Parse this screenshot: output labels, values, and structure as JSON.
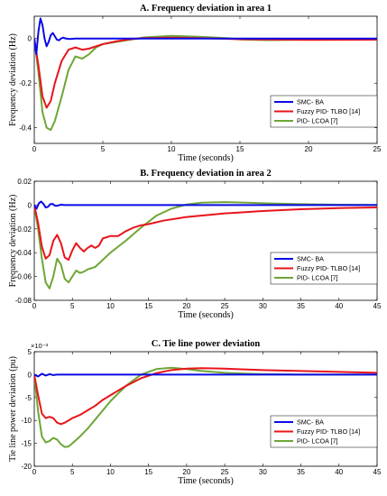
{
  "colors": {
    "smc": "#0a0ae6",
    "fuzzy": "#e8141b",
    "pid": "#6ea636"
  },
  "chart_data": [
    {
      "type": "line",
      "title": "A. Frequency deviation in area 1",
      "xlabel": "Time (seconds)",
      "ylabel": "Frequency deviation (Hz)",
      "xlim": [
        0,
        25
      ],
      "ylim": [
        -0.47,
        0.1
      ],
      "xticks": [
        0,
        5,
        10,
        15,
        20,
        25
      ],
      "yticks": [
        0,
        -0.2,
        -0.4
      ],
      "ytick_labels": [
        "0",
        "-0.2",
        "-0.4"
      ],
      "legend_position": "lower-right",
      "series": [
        {
          "name": "SMC- BA",
          "color_key": "smc",
          "x": [
            0,
            0.15,
            0.3,
            0.45,
            0.6,
            0.75,
            0.9,
            1.05,
            1.2,
            1.35,
            1.5,
            1.65,
            1.8,
            1.95,
            2.1,
            2.3,
            2.6,
            3,
            25
          ],
          "y": [
            0,
            -0.07,
            0.03,
            0.09,
            0.06,
            0.0,
            -0.035,
            -0.015,
            0.015,
            0.025,
            0.01,
            -0.005,
            -0.008,
            0.0,
            0.004,
            0.0,
            -0.002,
            0,
            0
          ]
        },
        {
          "name": "Fuzzy PID- TLBO [14]",
          "color_key": "fuzzy",
          "x": [
            0,
            0.3,
            0.6,
            0.9,
            1.2,
            1.5,
            2,
            2.5,
            3,
            3.5,
            4,
            5,
            6,
            7,
            8,
            10,
            12,
            15,
            20,
            25
          ],
          "y": [
            0,
            -0.12,
            -0.26,
            -0.31,
            -0.28,
            -0.2,
            -0.1,
            -0.05,
            -0.04,
            -0.05,
            -0.045,
            -0.025,
            -0.012,
            -0.003,
            0.002,
            0.004,
            0.002,
            -0.003,
            -0.006,
            -0.005
          ]
        },
        {
          "name": "PID- LCOA [7]",
          "color_key": "pid",
          "x": [
            0,
            0.3,
            0.6,
            0.9,
            1.2,
            1.5,
            2,
            2.5,
            3,
            3.5,
            4,
            4.5,
            5,
            5.5,
            6,
            7,
            8,
            10,
            12,
            14,
            15,
            17,
            20,
            25
          ],
          "y": [
            0,
            -0.15,
            -0.33,
            -0.4,
            -0.41,
            -0.37,
            -0.26,
            -0.14,
            -0.08,
            -0.09,
            -0.07,
            -0.04,
            -0.025,
            -0.02,
            -0.015,
            -0.005,
            0.005,
            0.012,
            0.008,
            0.002,
            -0.004,
            -0.007,
            -0.005,
            -0.004
          ]
        }
      ]
    },
    {
      "type": "line",
      "title": "B. Frequency deviation in area 2",
      "xlabel": "Time (seconds)",
      "ylabel": "Frequency deviation (Hz)",
      "xlim": [
        0,
        45
      ],
      "ylim": [
        -0.08,
        0.02
      ],
      "xticks": [
        0,
        5,
        10,
        15,
        20,
        25,
        30,
        35,
        40,
        45
      ],
      "yticks": [
        0.02,
        0,
        -0.02,
        -0.04,
        -0.06,
        -0.08
      ],
      "ytick_labels": [
        "0.02",
        "0",
        "-0.02",
        "-0.04",
        "-0.06",
        "-0.08"
      ],
      "legend_position": "lower-right",
      "series": [
        {
          "name": "SMC- BA",
          "color_key": "smc",
          "x": [
            0,
            0.3,
            0.6,
            0.9,
            1.2,
            1.5,
            1.8,
            2.1,
            2.4,
            2.7,
            3,
            3.5,
            4,
            45
          ],
          "y": [
            0,
            -0.003,
            0.0015,
            0.003,
            0.001,
            -0.002,
            -0.0015,
            0.0008,
            0.001,
            -0.0005,
            -0.0006,
            0.0003,
            0,
            0
          ]
        },
        {
          "name": "Fuzzy PID- TLBO [14]",
          "color_key": "fuzzy",
          "x": [
            0,
            0.5,
            1,
            1.5,
            2,
            2.5,
            3,
            3.5,
            4,
            4.5,
            5,
            5.5,
            6,
            6.5,
            7,
            7.5,
            8,
            8.5,
            9,
            10,
            11,
            12,
            13,
            14,
            15,
            17,
            20,
            25,
            30,
            35,
            40,
            45
          ],
          "y": [
            0,
            -0.015,
            -0.035,
            -0.045,
            -0.042,
            -0.03,
            -0.025,
            -0.032,
            -0.044,
            -0.046,
            -0.038,
            -0.032,
            -0.036,
            -0.039,
            -0.036,
            -0.034,
            -0.036,
            -0.034,
            -0.028,
            -0.026,
            -0.026,
            -0.022,
            -0.019,
            -0.017,
            -0.016,
            -0.013,
            -0.01,
            -0.007,
            -0.005,
            -0.0035,
            -0.0025,
            -0.002
          ]
        },
        {
          "name": "PID- LCOA [7]",
          "color_key": "pid",
          "x": [
            0,
            0.5,
            1,
            1.5,
            2,
            2.5,
            3,
            3.5,
            4,
            4.5,
            5,
            5.5,
            6,
            6.5,
            7,
            8,
            9,
            10,
            12,
            14,
            16,
            18,
            20,
            22,
            25,
            28,
            30,
            35,
            40,
            45
          ],
          "y": [
            0,
            -0.02,
            -0.045,
            -0.065,
            -0.07,
            -0.06,
            -0.045,
            -0.05,
            -0.062,
            -0.065,
            -0.06,
            -0.055,
            -0.057,
            -0.056,
            -0.054,
            -0.052,
            -0.046,
            -0.04,
            -0.03,
            -0.019,
            -0.009,
            -0.003,
            0.0005,
            0.002,
            0.0025,
            0.002,
            0.0015,
            0.0008,
            0.0003,
            0.0001
          ]
        }
      ]
    },
    {
      "type": "line",
      "title": "C. Tie line power deviation",
      "xlabel": "Time (seconds)",
      "ylabel": "Tie line power deviation (pu)",
      "exponent_label": "×10⁻³",
      "xlim": [
        0,
        45
      ],
      "ylim": [
        -0.02,
        0.005
      ],
      "xticks": [
        0,
        5,
        10,
        15,
        20,
        25,
        30,
        35,
        40,
        45
      ],
      "yticks": [
        0.005,
        0,
        -0.005,
        -0.01,
        -0.015,
        -0.02
      ],
      "ytick_labels": [
        "5",
        "0",
        "-5",
        "-10",
        "-15",
        "-20"
      ],
      "legend_position": "lower-right",
      "series": [
        {
          "name": "SMC- BA",
          "color_key": "smc",
          "x": [
            0,
            0.5,
            1,
            1.5,
            2,
            2.5,
            3,
            4,
            5,
            45
          ],
          "y": [
            0,
            -0.0004,
            0.0002,
            -0.0002,
            0.0001,
            -0.0001,
            0,
            0,
            0,
            0
          ]
        },
        {
          "name": "Fuzzy PID- TLBO [14]",
          "color_key": "fuzzy",
          "x": [
            0,
            0.5,
            1,
            1.5,
            2,
            2.5,
            3,
            3.5,
            4,
            5,
            6,
            7,
            8,
            9,
            10,
            12,
            14,
            16,
            18,
            20,
            22,
            25,
            30,
            35,
            40,
            45
          ],
          "y": [
            0,
            -0.0045,
            -0.0085,
            -0.0095,
            -0.0092,
            -0.0095,
            -0.0105,
            -0.0108,
            -0.0105,
            -0.0095,
            -0.0088,
            -0.0078,
            -0.0068,
            -0.0055,
            -0.0045,
            -0.0025,
            -0.0008,
            0.0003,
            0.001,
            0.0013,
            0.0014,
            0.0013,
            0.001,
            0.0008,
            0.0006,
            0.0004
          ]
        },
        {
          "name": "PID- LCOA [7]",
          "color_key": "pid",
          "x": [
            0,
            0.5,
            1,
            1.5,
            2,
            2.5,
            3,
            3.5,
            4,
            4.5,
            5,
            6,
            7,
            8,
            9,
            10,
            12,
            14,
            16,
            18,
            20,
            22,
            25,
            28,
            30,
            35,
            40,
            45
          ],
          "y": [
            0,
            -0.008,
            -0.0135,
            -0.0148,
            -0.0145,
            -0.0138,
            -0.0142,
            -0.0152,
            -0.0158,
            -0.0157,
            -0.015,
            -0.0135,
            -0.0118,
            -0.0098,
            -0.0078,
            -0.0058,
            -0.0025,
            0.0,
            0.0012,
            0.0015,
            0.0012,
            0.0008,
            0.0004,
            0.0002,
            0.0001,
            0.0,
            0.0,
            0.0
          ]
        }
      ]
    }
  ]
}
